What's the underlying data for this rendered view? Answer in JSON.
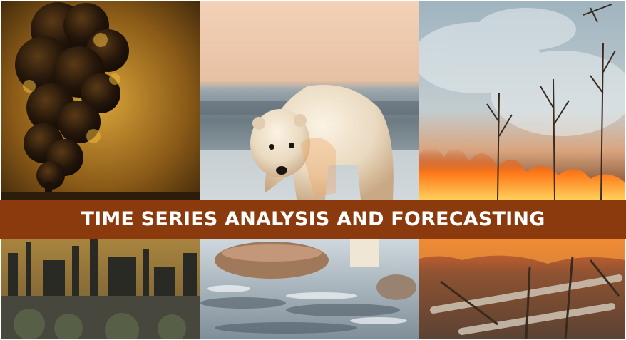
{
  "banner": {
    "title": "TIME SERIES ANALYSIS AND FORECASTING",
    "background_color": "#8b3a0e",
    "text_color": "#ffffff"
  },
  "photos": [
    {
      "subject": "industrial smokestack emitting dark smoke"
    },
    {
      "subject": "polar bear walking on thin ice"
    },
    {
      "subject": "wildfire burning in forest"
    },
    {
      "subject": "industrial factory silhouette"
    },
    {
      "subject": "melting ice and rocks"
    },
    {
      "subject": "burning fallen logs"
    }
  ]
}
